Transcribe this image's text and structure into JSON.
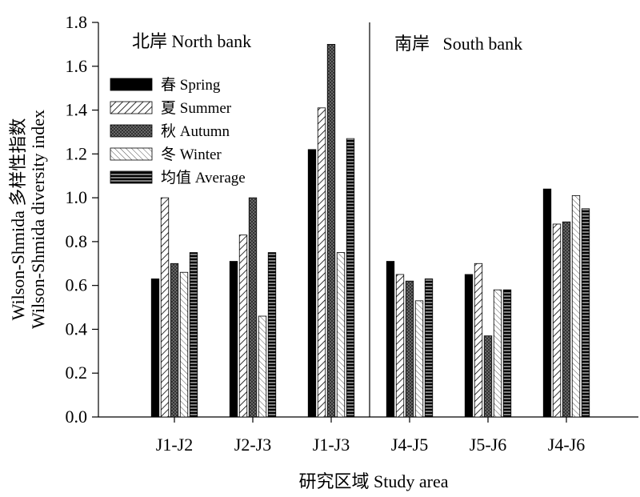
{
  "chart_data": {
    "type": "bar",
    "title": "",
    "xlabel": "研究区域 Study area",
    "ylabel_line1": "Wilson-Shmida 多样性指数",
    "ylabel_line2": "Wilson-Shmida diversity index",
    "ylim": [
      0,
      1.8
    ],
    "yticks": [
      "0.0",
      "0.2",
      "0.4",
      "0.6",
      "0.8",
      "1.0",
      "1.2",
      "1.4",
      "1.6",
      "1.8"
    ],
    "categories": [
      "J1-J2",
      "J2-J3",
      "J1-J3",
      "J4-J5",
      "J5-J6",
      "J4-J6"
    ],
    "regions": [
      {
        "label": "北岸 North bank",
        "categories": [
          "J1-J2",
          "J2-J3",
          "J1-J3"
        ]
      },
      {
        "label": "南岸   South bank",
        "categories": [
          "J4-J5",
          "J5-J6",
          "J4-J6"
        ]
      }
    ],
    "series": [
      {
        "name": "春 Spring",
        "pattern": "solid",
        "values": [
          0.63,
          0.71,
          1.22,
          0.71,
          0.65,
          1.04
        ]
      },
      {
        "name": "夏 Summer",
        "pattern": "hatch-wide",
        "values": [
          1.0,
          0.83,
          1.41,
          0.65,
          0.7,
          0.88
        ]
      },
      {
        "name": "秋 Autumn",
        "pattern": "crosshatch-dark",
        "values": [
          0.7,
          1.0,
          1.7,
          0.62,
          0.37,
          0.89
        ]
      },
      {
        "name": "冬 Winter",
        "pattern": "hatch-light",
        "values": [
          0.66,
          0.46,
          0.75,
          0.53,
          0.58,
          1.01
        ]
      },
      {
        "name": "均值 Average",
        "pattern": "horizontal-stripes",
        "values": [
          0.75,
          0.75,
          1.27,
          0.63,
          0.58,
          0.95
        ]
      }
    ],
    "legend_position": "top-left",
    "grid": false
  }
}
